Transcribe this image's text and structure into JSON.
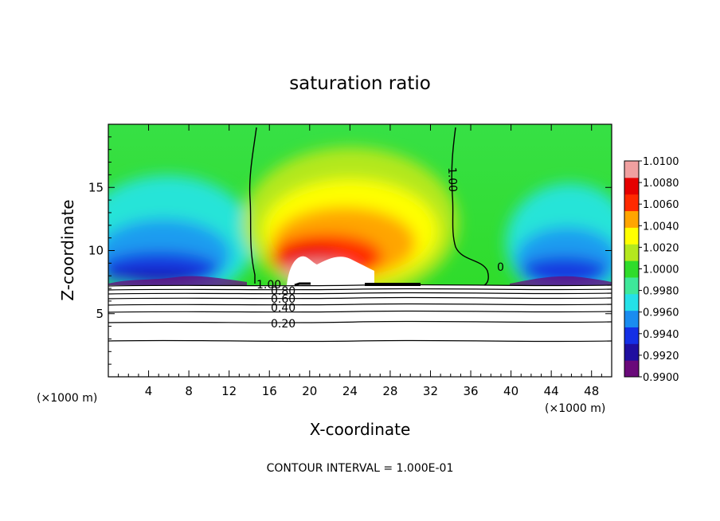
{
  "chart_data": {
    "type": "heatmap",
    "title": "saturation ratio",
    "xlabel": "X-coordinate",
    "ylabel": "Z-coordinate",
    "x_unit": "(×1000 m)",
    "footer": "CONTOUR INTERVAL = 1.000E-01",
    "xlim": [
      0,
      50
    ],
    "ylim": [
      0,
      20
    ],
    "x_ticks": [
      4,
      8,
      12,
      16,
      20,
      24,
      28,
      32,
      36,
      40,
      44,
      48
    ],
    "y_ticks": [
      5,
      10,
      15
    ],
    "colorbar": {
      "ticks": [
        "1.0100",
        "1.0080",
        "1.0060",
        "1.0040",
        "1.0020",
        "1.0000",
        "0.9980",
        "0.9960",
        "0.9940",
        "0.9920",
        "0.9900"
      ],
      "min": 0.99,
      "max": 1.01,
      "colors": [
        "#6a0a7a",
        "#1f0fa0",
        "#1430e6",
        "#1a8cf0",
        "#25e1e8",
        "#3ee89a",
        "#2fdc2b",
        "#b4e81e",
        "#ffff00",
        "#ffa500",
        "#ff2a00",
        "#e60000",
        "#f0a0a0"
      ]
    },
    "contour_labels": [
      {
        "text": "1.00",
        "x": 16.2,
        "z": 7.2
      },
      {
        "text": "1.00",
        "x": 34.8,
        "z": 16.5
      },
      {
        "text": "0",
        "x": 39.0,
        "z": 8.5
      },
      {
        "text": "0.80",
        "x": 17.3,
        "z": 6.6
      },
      {
        "text": "0.60",
        "x": 17.4,
        "z": 6.1
      },
      {
        "text": "0.40",
        "x": 17.4,
        "z": 5.5
      },
      {
        "text": "0.20",
        "x": 17.4,
        "z": 4.1
      }
    ],
    "subsaturated_contours": [
      0.2,
      0.4,
      0.6,
      0.8,
      1.0
    ]
  }
}
